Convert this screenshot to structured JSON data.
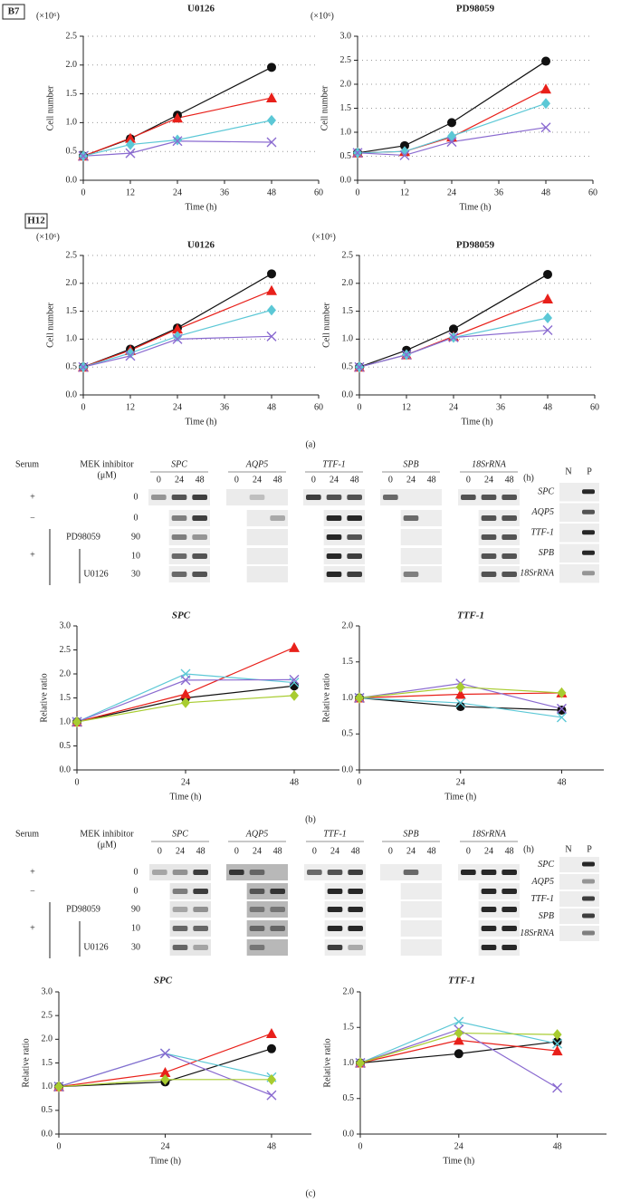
{
  "panel_labels": [
    "(a)",
    "(b)",
    "(c)"
  ],
  "chart_data": [
    {
      "type": "line",
      "tag": "B7",
      "title": "U0126",
      "y_unit": "(×10⁶)",
      "x_label": "Time (h)",
      "y_label": "Cell number",
      "x": [
        0,
        12,
        24,
        48
      ],
      "xlim": [
        0,
        60
      ],
      "xticks": [
        0,
        12,
        24,
        36,
        48,
        60
      ],
      "ylim": [
        0,
        2.5
      ],
      "yticks": [
        {
          "value": 0,
          "label": "0.0"
        },
        0.5,
        {
          "value": 1,
          "label": "1.0"
        },
        1.5,
        {
          "value": 2,
          "label": "2.0"
        },
        2.5
      ],
      "grid": true,
      "series": [
        {
          "color": "#111111",
          "marker": "circle",
          "values": [
            0.42,
            0.72,
            1.13,
            1.96
          ]
        },
        {
          "color": "#e8201a",
          "marker": "triangle",
          "values": [
            0.42,
            0.73,
            1.08,
            1.43
          ]
        },
        {
          "color": "#5cc8d6",
          "marker": "diamond",
          "values": [
            0.42,
            0.62,
            0.7,
            1.04
          ]
        },
        {
          "color": "#8a6ad0",
          "marker": "x",
          "values": [
            0.42,
            0.47,
            0.68,
            0.66
          ]
        }
      ]
    },
    {
      "type": "line",
      "title": "PD98059",
      "y_unit": "(×10⁶)",
      "x_label": "Time (h)",
      "y_label": "Cell number",
      "x": [
        0,
        12,
        24,
        48
      ],
      "xlim": [
        0,
        60
      ],
      "xticks": [
        0,
        12,
        24,
        36,
        48,
        60
      ],
      "ylim": [
        0,
        3
      ],
      "yticks": [
        {
          "value": 0,
          "label": "0.0"
        },
        0.5,
        {
          "value": 1,
          "label": "1.0"
        },
        1.5,
        {
          "value": 2,
          "label": "2.0"
        },
        2.5,
        {
          "value": 3,
          "label": "3.0"
        }
      ],
      "grid": true,
      "series": [
        {
          "color": "#111111",
          "marker": "circle",
          "values": [
            0.57,
            0.72,
            1.2,
            2.48
          ]
        },
        {
          "color": "#e8201a",
          "marker": "triangle",
          "values": [
            0.57,
            0.6,
            0.9,
            1.9
          ]
        },
        {
          "color": "#5cc8d6",
          "marker": "diamond",
          "values": [
            0.57,
            0.6,
            0.92,
            1.6
          ]
        },
        {
          "color": "#8a6ad0",
          "marker": "x",
          "values": [
            0.57,
            0.52,
            0.8,
            1.1
          ]
        }
      ]
    },
    {
      "type": "line",
      "tag": "H12",
      "title": "U0126",
      "y_unit": "(×10⁶)",
      "x_label": "Time (h)",
      "y_label": "Cell number",
      "x": [
        0,
        12,
        24,
        48
      ],
      "xlim": [
        0,
        60
      ],
      "xticks": [
        0,
        12,
        24,
        36,
        48,
        60
      ],
      "ylim": [
        0,
        2.5
      ],
      "yticks": [
        {
          "value": 0,
          "label": "0.0"
        },
        0.5,
        {
          "value": 1,
          "label": "1.0"
        },
        1.5,
        {
          "value": 2,
          "label": "2.0"
        },
        2.5
      ],
      "grid": true,
      "series": [
        {
          "color": "#111111",
          "marker": "circle",
          "values": [
            0.5,
            0.82,
            1.2,
            2.17
          ]
        },
        {
          "color": "#e8201a",
          "marker": "triangle",
          "values": [
            0.5,
            0.8,
            1.18,
            1.87
          ]
        },
        {
          "color": "#5cc8d6",
          "marker": "diamond",
          "values": [
            0.5,
            0.75,
            1.05,
            1.52
          ]
        },
        {
          "color": "#8a6ad0",
          "marker": "x",
          "values": [
            0.5,
            0.7,
            1.0,
            1.05
          ]
        }
      ]
    },
    {
      "type": "line",
      "title": "PD98059",
      "y_unit": "(×10⁶)",
      "x_label": "Time (h)",
      "y_label": "Cell number",
      "x": [
        0,
        12,
        24,
        48
      ],
      "xlim": [
        0,
        60
      ],
      "xticks": [
        0,
        12,
        24,
        36,
        48,
        60
      ],
      "ylim": [
        0,
        2.5
      ],
      "yticks": [
        {
          "value": 0,
          "label": "0.0"
        },
        0.5,
        {
          "value": 1,
          "label": "1.0"
        },
        1.5,
        {
          "value": 2,
          "label": "2.0"
        },
        2.5
      ],
      "grid": true,
      "series": [
        {
          "color": "#111111",
          "marker": "circle",
          "values": [
            0.5,
            0.8,
            1.18,
            2.16
          ]
        },
        {
          "color": "#e8201a",
          "marker": "triangle",
          "values": [
            0.5,
            0.72,
            1.05,
            1.72
          ]
        },
        {
          "color": "#5cc8d6",
          "marker": "diamond",
          "values": [
            0.5,
            0.72,
            1.03,
            1.38
          ]
        },
        {
          "color": "#8a6ad0",
          "marker": "x",
          "values": [
            0.5,
            0.72,
            1.03,
            1.16
          ]
        }
      ]
    },
    {
      "type": "line",
      "title": "SPC",
      "x_label": "Time (h)",
      "y_label": "Relative ratio",
      "x": [
        0,
        24,
        48
      ],
      "xlim": [
        0,
        58
      ],
      "xticks": [
        0,
        24,
        48
      ],
      "ylim": [
        0,
        3
      ],
      "yticks": [
        {
          "value": 0,
          "label": "0.0"
        },
        0.5,
        {
          "value": 1,
          "label": "1.0"
        },
        1.5,
        {
          "value": 2,
          "label": "2.0"
        },
        2.5,
        {
          "value": 3,
          "label": "3.0"
        }
      ],
      "grid": false,
      "series": [
        {
          "color": "#111111",
          "marker": "circle",
          "values": [
            1,
            1.5,
            1.75
          ]
        },
        {
          "color": "#e8201a",
          "marker": "triangle",
          "values": [
            1,
            1.58,
            2.55
          ]
        },
        {
          "color": "#5cc8d6",
          "marker": "x",
          "values": [
            1,
            2.0,
            1.82
          ]
        },
        {
          "color": "#8a6ad0",
          "marker": "x",
          "values": [
            1,
            1.87,
            1.88
          ]
        },
        {
          "color": "#a8cc30",
          "marker": "diamond",
          "values": [
            1,
            1.4,
            1.55
          ]
        }
      ]
    },
    {
      "type": "line",
      "title": "TTF-1",
      "x_label": "Time (h)",
      "y_label": "Relative ratio",
      "x": [
        0,
        24,
        48
      ],
      "xlim": [
        0,
        58
      ],
      "xticks": [
        0,
        24,
        48
      ],
      "ylim": [
        0,
        2
      ],
      "yticks": [
        {
          "value": 0,
          "label": "0.0"
        },
        0.5,
        {
          "value": 1,
          "label": "1.0"
        },
        1.5,
        {
          "value": 2,
          "label": "2.0"
        }
      ],
      "grid": false,
      "series": [
        {
          "color": "#111111",
          "marker": "circle",
          "values": [
            1,
            0.88,
            0.83
          ]
        },
        {
          "color": "#e8201a",
          "marker": "triangle",
          "values": [
            1,
            1.05,
            1.07
          ]
        },
        {
          "color": "#5cc8d6",
          "marker": "x",
          "values": [
            1,
            0.93,
            0.73
          ]
        },
        {
          "color": "#8a6ad0",
          "marker": "x",
          "values": [
            1,
            1.2,
            0.85
          ]
        },
        {
          "color": "#a8cc30",
          "marker": "diamond",
          "values": [
            1,
            1.15,
            1.07
          ]
        }
      ]
    },
    {
      "type": "line",
      "title": "SPC",
      "x_label": "Time (h)",
      "y_label": "Relative ratio",
      "x": [
        0,
        24,
        48
      ],
      "xlim": [
        0,
        57
      ],
      "xticks": [
        0,
        24,
        48
      ],
      "ylim": [
        0,
        3
      ],
      "yticks": [
        {
          "value": 0,
          "label": "0.0"
        },
        0.5,
        {
          "value": 1,
          "label": "1.0"
        },
        1.5,
        {
          "value": 2,
          "label": "2.0"
        },
        2.5,
        {
          "value": 3,
          "label": "3.0"
        }
      ],
      "grid": false,
      "series": [
        {
          "color": "#111111",
          "marker": "circle",
          "values": [
            1,
            1.1,
            1.8
          ]
        },
        {
          "color": "#e8201a",
          "marker": "triangle",
          "values": [
            1,
            1.3,
            2.12
          ]
        },
        {
          "color": "#5cc8d6",
          "marker": "x",
          "values": [
            1,
            1.7,
            1.2
          ]
        },
        {
          "color": "#8a6ad0",
          "marker": "x",
          "values": [
            1,
            1.7,
            0.82
          ]
        },
        {
          "color": "#a8cc30",
          "marker": "diamond",
          "values": [
            1,
            1.15,
            1.15
          ]
        }
      ]
    },
    {
      "type": "line",
      "title": "TTF-1",
      "x_label": "Time (h)",
      "y_label": "Relative ratio",
      "x": [
        0,
        24,
        48
      ],
      "xlim": [
        0,
        60
      ],
      "xticks": [
        0,
        24,
        48
      ],
      "ylim": [
        0,
        2
      ],
      "yticks": [
        {
          "value": 0,
          "label": "0.0"
        },
        0.5,
        {
          "value": 1,
          "label": "1.0"
        },
        1.5,
        {
          "value": 2,
          "label": "2.0"
        }
      ],
      "grid": false,
      "series": [
        {
          "color": "#111111",
          "marker": "circle",
          "values": [
            1,
            1.13,
            1.3
          ]
        },
        {
          "color": "#e8201a",
          "marker": "triangle",
          "values": [
            1,
            1.32,
            1.17
          ]
        },
        {
          "color": "#5cc8d6",
          "marker": "x",
          "values": [
            1,
            1.58,
            1.27
          ]
        },
        {
          "color": "#8a6ad0",
          "marker": "x",
          "values": [
            1,
            1.47,
            0.65
          ]
        },
        {
          "color": "#a8cc30",
          "marker": "diamond",
          "values": [
            1,
            1.42,
            1.4
          ]
        }
      ]
    }
  ],
  "gels": [
    {
      "serum_label": "Serum",
      "inhibitor_label": "MEK inhibitor",
      "unit_label": "(μM)",
      "genes": [
        "SPC",
        "AQP5",
        "TTF-1",
        "SPB",
        "18SrRNA"
      ],
      "lanes": [
        "0",
        "24",
        "48"
      ],
      "lane_unit": "(h)",
      "serum_signs": [
        "+",
        "−",
        "+"
      ],
      "doses": [
        "0",
        "0",
        "90",
        "10",
        "30"
      ],
      "inhibitors": [
        "PD98059",
        "U0126"
      ],
      "control_columns": [
        "N",
        "P"
      ],
      "control_genes": [
        "SPC",
        "AQP5",
        "TTF-1",
        "SPB",
        "18SrRNA"
      ]
    },
    {
      "serum_label": "Serum",
      "inhibitor_label": "MEK inhibitor",
      "unit_label": "(μM)",
      "genes": [
        "SPC",
        "AQP5",
        "TTF-1",
        "SPB",
        "18SrRNA"
      ],
      "lanes": [
        "0",
        "24",
        "48"
      ],
      "lane_unit": "(h)",
      "serum_signs": [
        "+",
        "−",
        "+"
      ],
      "doses": [
        "0",
        "0",
        "90",
        "10",
        "30"
      ],
      "inhibitors": [
        "PD98059",
        "U0126"
      ],
      "control_columns": [
        "N",
        "P"
      ],
      "control_genes": [
        "SPC",
        "AQP5",
        "TTF-1",
        "SPB",
        "18SrRNA"
      ]
    }
  ]
}
